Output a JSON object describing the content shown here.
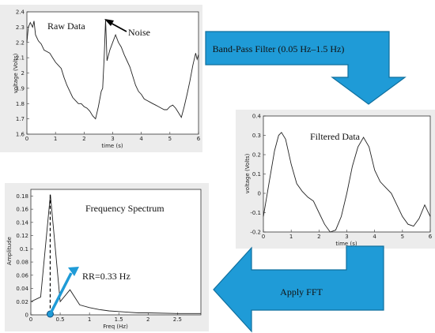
{
  "colors": {
    "arrow_fill": "#1f9bd7",
    "arrow_stroke": "#0f6f9e",
    "panel_bg": "#ececec",
    "line": "#222222"
  },
  "arrows": {
    "bandpass_label": "Band-Pass Filter (0.05 Hz–1.5 Hz)",
    "fft_label": "Apply FFT"
  },
  "chart_data": [
    {
      "type": "line",
      "title": "Raw Data",
      "annotation": "Noise",
      "xlabel": "time (s)",
      "ylabel": "voltage (Volts)",
      "xlim": [
        0,
        6
      ],
      "ylim": [
        1.6,
        2.4
      ],
      "xticks": [
        "0",
        "1",
        "2",
        "3",
        "4",
        "5",
        "6"
      ],
      "yticks": [
        "1.6",
        "1.7",
        "1.8",
        "1.9",
        "2",
        "2.1",
        "2.2",
        "2.3",
        "2.4"
      ],
      "x": [
        0.0,
        0.05,
        0.12,
        0.2,
        0.25,
        0.3,
        0.4,
        0.5,
        0.6,
        0.7,
        0.8,
        0.9,
        1.0,
        1.1,
        1.2,
        1.3,
        1.4,
        1.5,
        1.6,
        1.7,
        1.8,
        1.9,
        2.0,
        2.1,
        2.2,
        2.3,
        2.4,
        2.5,
        2.6,
        2.65,
        2.7,
        2.75,
        2.8,
        2.9,
        3.0,
        3.1,
        3.2,
        3.3,
        3.4,
        3.5,
        3.6,
        3.7,
        3.8,
        3.9,
        4.0,
        4.1,
        4.2,
        4.3,
        4.4,
        4.5,
        4.6,
        4.7,
        4.8,
        4.9,
        5.0,
        5.1,
        5.2,
        5.3,
        5.4,
        5.5,
        5.6,
        5.7,
        5.8,
        5.9,
        5.95,
        6.0
      ],
      "y": [
        2.2,
        2.3,
        2.33,
        2.3,
        2.34,
        2.25,
        2.21,
        2.19,
        2.15,
        2.14,
        2.13,
        2.1,
        2.07,
        2.05,
        2.03,
        1.97,
        1.92,
        1.88,
        1.84,
        1.82,
        1.8,
        1.8,
        1.78,
        1.77,
        1.75,
        1.72,
        1.7,
        1.78,
        1.88,
        1.9,
        2.1,
        2.35,
        2.08,
        2.15,
        2.2,
        2.25,
        2.2,
        2.17,
        2.12,
        2.08,
        2.04,
        1.98,
        1.92,
        1.88,
        1.86,
        1.83,
        1.82,
        1.81,
        1.8,
        1.79,
        1.78,
        1.77,
        1.76,
        1.76,
        1.78,
        1.79,
        1.77,
        1.74,
        1.71,
        1.78,
        1.86,
        1.95,
        2.05,
        2.13,
        2.09,
        2.12
      ]
    },
    {
      "type": "line",
      "title": "Filtered Data",
      "xlabel": "time (s)",
      "ylabel": "voltage (Volts)",
      "xlim": [
        0,
        6
      ],
      "ylim": [
        -0.2,
        0.4
      ],
      "xticks": [
        "0",
        "1",
        "2",
        "3",
        "4",
        "5",
        "6"
      ],
      "yticks": [
        "-0.2",
        "-0.1",
        "0",
        "0.1",
        "0.2",
        "0.3",
        "0.4"
      ],
      "x": [
        0.0,
        0.2,
        0.4,
        0.55,
        0.65,
        0.8,
        1.0,
        1.2,
        1.4,
        1.6,
        1.8,
        2.0,
        2.2,
        2.4,
        2.6,
        2.8,
        3.0,
        3.2,
        3.4,
        3.6,
        3.8,
        4.0,
        4.2,
        4.4,
        4.6,
        4.8,
        5.0,
        5.2,
        5.4,
        5.6,
        5.8,
        6.0
      ],
      "y": [
        -0.12,
        0.05,
        0.22,
        0.3,
        0.315,
        0.28,
        0.15,
        0.05,
        0.01,
        -0.02,
        -0.04,
        -0.1,
        -0.16,
        -0.2,
        -0.19,
        -0.12,
        0.0,
        0.14,
        0.24,
        0.29,
        0.24,
        0.12,
        0.06,
        0.03,
        0.0,
        -0.06,
        -0.12,
        -0.16,
        -0.17,
        -0.13,
        -0.06,
        -0.12
      ]
    },
    {
      "type": "line",
      "title": "Frequency Spectrum",
      "annotation": "RR=0.33 Hz",
      "xlabel": "Freq (Hz)",
      "ylabel": "Amplitude",
      "xlim": [
        0,
        2.9
      ],
      "ylim": [
        0,
        0.19
      ],
      "xticks": [
        "0",
        "0.5",
        "1",
        "1.5",
        "2",
        "2.5"
      ],
      "yticks": [
        "0",
        "0.02",
        "0.04",
        "0.06",
        "0.08",
        "0.1",
        "0.12",
        "0.14",
        "0.16",
        "0.18"
      ],
      "peak": {
        "x": 0.33,
        "y": 0.182
      },
      "x": [
        0.0,
        0.167,
        0.333,
        0.5,
        0.667,
        0.833,
        1.0,
        1.167,
        1.333,
        1.5,
        1.667,
        1.833,
        2.0,
        2.5,
        2.9
      ],
      "y": [
        0.02,
        0.027,
        0.182,
        0.02,
        0.038,
        0.015,
        0.011,
        0.008,
        0.006,
        0.005,
        0.004,
        0.003,
        0.003,
        0.002,
        0.002
      ]
    }
  ]
}
